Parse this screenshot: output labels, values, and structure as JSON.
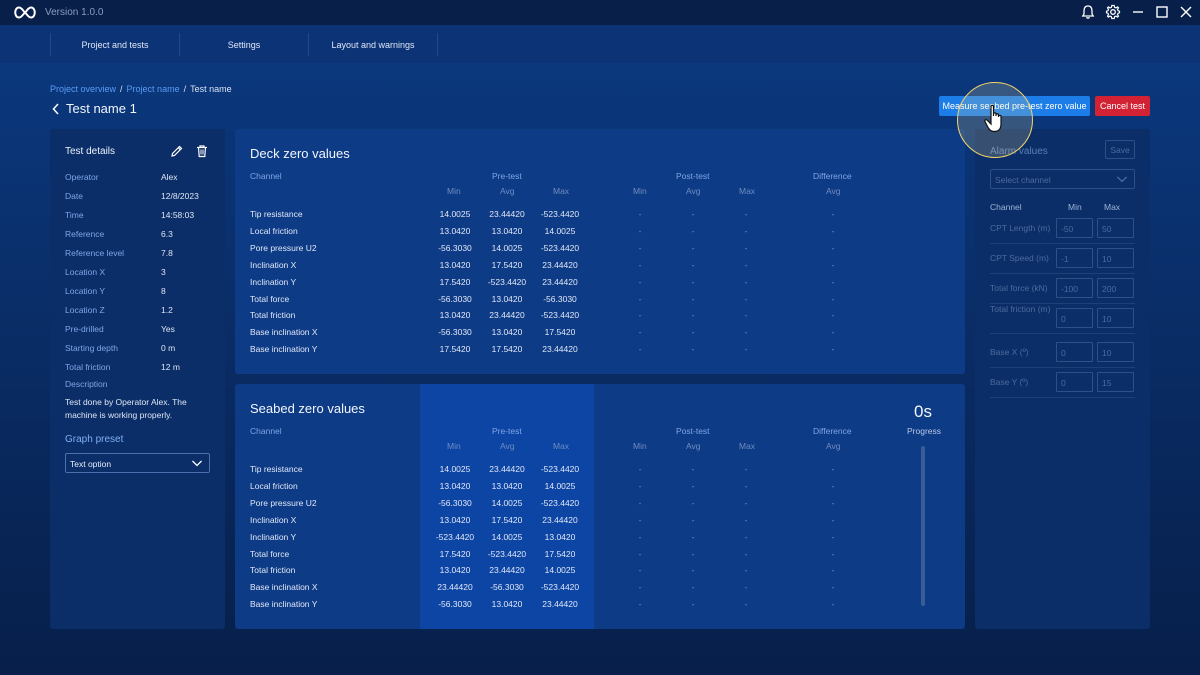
{
  "app": {
    "version": "Version 1.0.0",
    "icons": {
      "logo": "infinity-logo-icon",
      "bell": "bell-icon",
      "settings": "gear-icon",
      "minimize": "minimize-icon",
      "maximize": "maximize-icon",
      "close": "close-icon"
    }
  },
  "nav": {
    "items": [
      "Project and tests",
      "Settings",
      "Layout and warnings"
    ]
  },
  "breadcrumb": {
    "items": [
      "Project overview",
      "Project name",
      "Test name"
    ]
  },
  "page": {
    "title": "Test name 1"
  },
  "actions": {
    "measure_label": "Measure seabed pre-test zero value",
    "cancel_label": "Cancel test",
    "measure_color": "#1c7ce8",
    "cancel_color": "#d32234"
  },
  "details": {
    "title": "Test details",
    "rows": [
      {
        "key": "Operator",
        "value": "Alex"
      },
      {
        "key": "Date",
        "value": "12/8/2023"
      },
      {
        "key": "Time",
        "value": "14:58:03"
      },
      {
        "key": "Reference",
        "value": "6.3"
      },
      {
        "key": "Reference level",
        "value": "7.8"
      },
      {
        "key": "Location X",
        "value": "3"
      },
      {
        "key": "Location Y",
        "value": "8"
      },
      {
        "key": "Location Z",
        "value": "1.2"
      },
      {
        "key": "Pre-drilled",
        "value": "Yes"
      },
      {
        "key": "Starting depth",
        "value": "0 m"
      },
      {
        "key": "Total friction",
        "value": "12 m"
      }
    ],
    "description_label": "Description",
    "description": "Test done by Operator Alex. The machine is working properly.",
    "graph_preset_label": "Graph preset",
    "graph_preset_value": "Text option"
  },
  "table_headers": {
    "channel": "Channel",
    "pre_test": "Pre-test",
    "post_test": "Post-test",
    "difference": "Difference",
    "min": "Min",
    "avg": "Avg",
    "max": "Max",
    "dash": "-"
  },
  "deck": {
    "title": "Deck zero values",
    "rows": [
      {
        "channel": "Tip resistance",
        "min": "14.0025",
        "avg": "23.44420",
        "max": "-523.4420"
      },
      {
        "channel": "Local friction",
        "min": "13.0420",
        "avg": "13.0420",
        "max": "14.0025"
      },
      {
        "channel": "Pore pressure U2",
        "min": "-56.3030",
        "avg": "14.0025",
        "max": "-523.4420"
      },
      {
        "channel": "Inclination X",
        "min": "13.0420",
        "avg": "17.5420",
        "max": "23.44420"
      },
      {
        "channel": "Inclination Y",
        "min": "17.5420",
        "avg": "-523.4420",
        "max": "23.44420"
      },
      {
        "channel": "Total force",
        "min": "-56.3030",
        "avg": "13.0420",
        "max": "-56.3030"
      },
      {
        "channel": "Total friction",
        "min": "13.0420",
        "avg": "23.44420",
        "max": "-523.4420"
      },
      {
        "channel": "Base inclination X",
        "min": "-56.3030",
        "avg": "13.0420",
        "max": "17.5420"
      },
      {
        "channel": "Base inclination Y",
        "min": "17.5420",
        "avg": "17.5420",
        "max": "23.44420"
      }
    ]
  },
  "seabed": {
    "title": "Seabed zero values",
    "progress_value": "0s",
    "progress_label": "Progress",
    "rows": [
      {
        "channel": "Tip resistance",
        "min": "14.0025",
        "avg": "23.44420",
        "max": "-523.4420"
      },
      {
        "channel": "Local friction",
        "min": "13.0420",
        "avg": "13.0420",
        "max": "14.0025"
      },
      {
        "channel": "Pore pressure U2",
        "min": "-56.3030",
        "avg": "14.0025",
        "max": "-523.4420"
      },
      {
        "channel": "Inclination X",
        "min": "13.0420",
        "avg": "17.5420",
        "max": "23.44420"
      },
      {
        "channel": "Inclination Y",
        "min": "-523.4420",
        "avg": "14.0025",
        "max": "13.0420"
      },
      {
        "channel": "Total force",
        "min": "17.5420",
        "avg": "-523.4420",
        "max": "17.5420"
      },
      {
        "channel": "Total friction",
        "min": "13.0420",
        "avg": "23.44420",
        "max": "14.0025"
      },
      {
        "channel": "Base inclination X",
        "min": "23.44420",
        "avg": "-56.3030",
        "max": "-523.4420"
      },
      {
        "channel": "Base inclination Y",
        "min": "-56.3030",
        "avg": "13.0420",
        "max": "23.44420"
      }
    ]
  },
  "alarm": {
    "title": "Alarm values",
    "save_label": "Save",
    "select_placeholder": "Select channel",
    "col_channel": "Channel",
    "col_min": "Min",
    "col_max": "Max",
    "rows": [
      {
        "label": "CPT Length (m)",
        "min": "-50",
        "max": "50"
      },
      {
        "label": "CPT Speed (m)",
        "min": "-1",
        "max": "10"
      },
      {
        "label": "Total force (kN)",
        "min": "-100",
        "max": "200"
      },
      {
        "label": "Total friction (m)",
        "min": "0",
        "max": "10"
      },
      {
        "label": "Base X (º)",
        "min": "0",
        "max": "10"
      },
      {
        "label": "Base Y (º)",
        "min": "0",
        "max": "15"
      }
    ]
  }
}
